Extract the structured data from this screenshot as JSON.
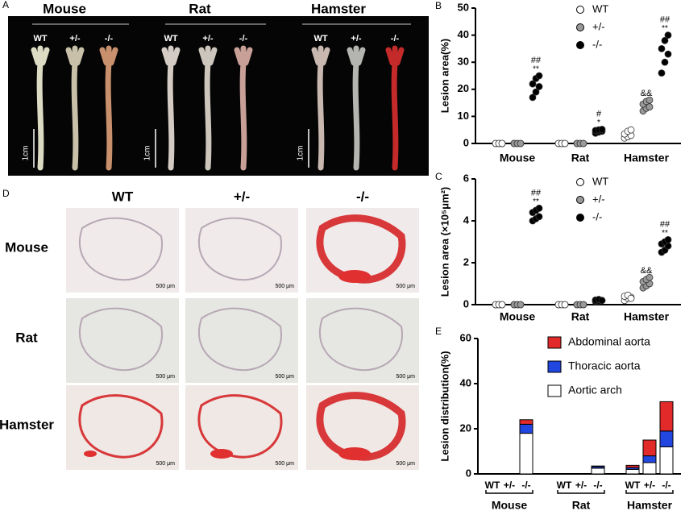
{
  "panel_a": {
    "label": "A",
    "species": [
      "Mouse",
      "Rat",
      "Hamster"
    ],
    "genotypes": [
      "WT",
      "+/-",
      "-/-",
      "WT",
      "+/-",
      "-/-",
      "WT",
      "+/-",
      "-/-"
    ],
    "scale": [
      "1cm",
      "1cm",
      "1cm"
    ]
  },
  "panel_d": {
    "label": "D",
    "columns": [
      "WT",
      "+/-",
      "-/-"
    ],
    "rows": [
      "Mouse",
      "Rat",
      "Hamster"
    ],
    "scale_bars": [
      "500 μm",
      "500 μm",
      "500 μm",
      "500 μm",
      "500 μm",
      "500 μm",
      "500 μm",
      "500 μm",
      "500 μm"
    ]
  },
  "chart_data": [
    {
      "type": "dotplot",
      "label": "B",
      "y_label": "Lesion area(%)",
      "categories": [
        "Mouse",
        "Rat",
        "Hamster"
      ],
      "ylim": [
        0,
        50
      ],
      "yticks": [
        0,
        10,
        20,
        30,
        40,
        50
      ],
      "series": [
        {
          "name": "WT",
          "color": "#ffffff",
          "values": [
            [
              0,
              0,
              0,
              0,
              0,
              0
            ],
            [
              0,
              0,
              0,
              0,
              0,
              0
            ],
            [
              2,
              2.5,
              3,
              3.5,
              4.5,
              5
            ]
          ]
        },
        {
          "name": "+/-",
          "color": "#999999",
          "values": [
            [
              0,
              0,
              0,
              0,
              0,
              0
            ],
            [
              0,
              0,
              0,
              0,
              0,
              0
            ],
            [
              12,
              13,
              13.5,
              14.5,
              15.5,
              16
            ]
          ],
          "markers": [
            null,
            null,
            "&&"
          ]
        },
        {
          "name": "-/-",
          "color": "#000000",
          "values": [
            [
              17,
              19,
              21,
              22,
              24,
              25
            ],
            [
              3.8,
              4.2,
              4.5,
              4.8,
              5,
              5.2
            ],
            [
              26,
              30,
              33,
              35,
              38,
              40
            ]
          ],
          "markers": [
            "##",
            "#",
            "##"
          ],
          "stars": [
            "**",
            "*",
            "**"
          ]
        }
      ]
    },
    {
      "type": "dotplot",
      "label": "C",
      "y_label": "Lesion area (×10⁵μm²)",
      "categories": [
        "Mouse",
        "Rat",
        "Hamster"
      ],
      "ylim": [
        0,
        6
      ],
      "yticks": [
        0,
        2,
        4,
        6
      ],
      "series": [
        {
          "name": "WT",
          "color": "#ffffff",
          "values": [
            [
              0,
              0,
              0,
              0,
              0,
              0
            ],
            [
              0,
              0,
              0,
              0,
              0,
              0
            ],
            [
              0.2,
              0.3,
              0.35,
              0.4,
              0.45,
              0.3
            ]
          ]
        },
        {
          "name": "+/-",
          "color": "#999999",
          "values": [
            [
              0,
              0,
              0,
              0,
              0,
              0
            ],
            [
              0,
              0,
              0,
              0,
              0,
              0
            ],
            [
              0.8,
              0.9,
              1.0,
              1.1,
              1.2,
              1.3
            ]
          ],
          "markers": [
            null,
            null,
            "&&"
          ]
        },
        {
          "name": "-/-",
          "color": "#000000",
          "values": [
            [
              4.0,
              4.1,
              4.2,
              4.4,
              4.5,
              4.6
            ],
            [
              0.15,
              0.18,
              0.2,
              0.22,
              0.25,
              0.2
            ],
            [
              2.5,
              2.6,
              2.8,
              2.9,
              3.0,
              3.1
            ]
          ],
          "markers": [
            "##",
            null,
            "##"
          ],
          "stars": [
            "**",
            null,
            "**"
          ]
        }
      ]
    },
    {
      "type": "stacked_bar",
      "label": "E",
      "y_label": "Lesion distribution(%)",
      "categories": [
        "WT",
        "+/-",
        "-/-",
        "WT",
        "+/-",
        "-/-",
        "WT",
        "+/-",
        "-/-"
      ],
      "groups": [
        "Mouse",
        "Rat",
        "Hamster"
      ],
      "ylim": [
        0,
        60
      ],
      "yticks": [
        0,
        20,
        40,
        60
      ],
      "series": [
        {
          "name": "Abdominal aorta",
          "color": "#e32a2a",
          "values": [
            0,
            0,
            2,
            0,
            0,
            0.3,
            1,
            7,
            13
          ]
        },
        {
          "name": "Thoracic aorta",
          "color": "#2246e0",
          "values": [
            0,
            0,
            4,
            0,
            0,
            0.7,
            0.8,
            3,
            7
          ]
        },
        {
          "name": "Aortic arch",
          "color": "#ffffff",
          "values": [
            0,
            0,
            18,
            0,
            0,
            2.5,
            2,
            5,
            12
          ]
        }
      ]
    }
  ]
}
